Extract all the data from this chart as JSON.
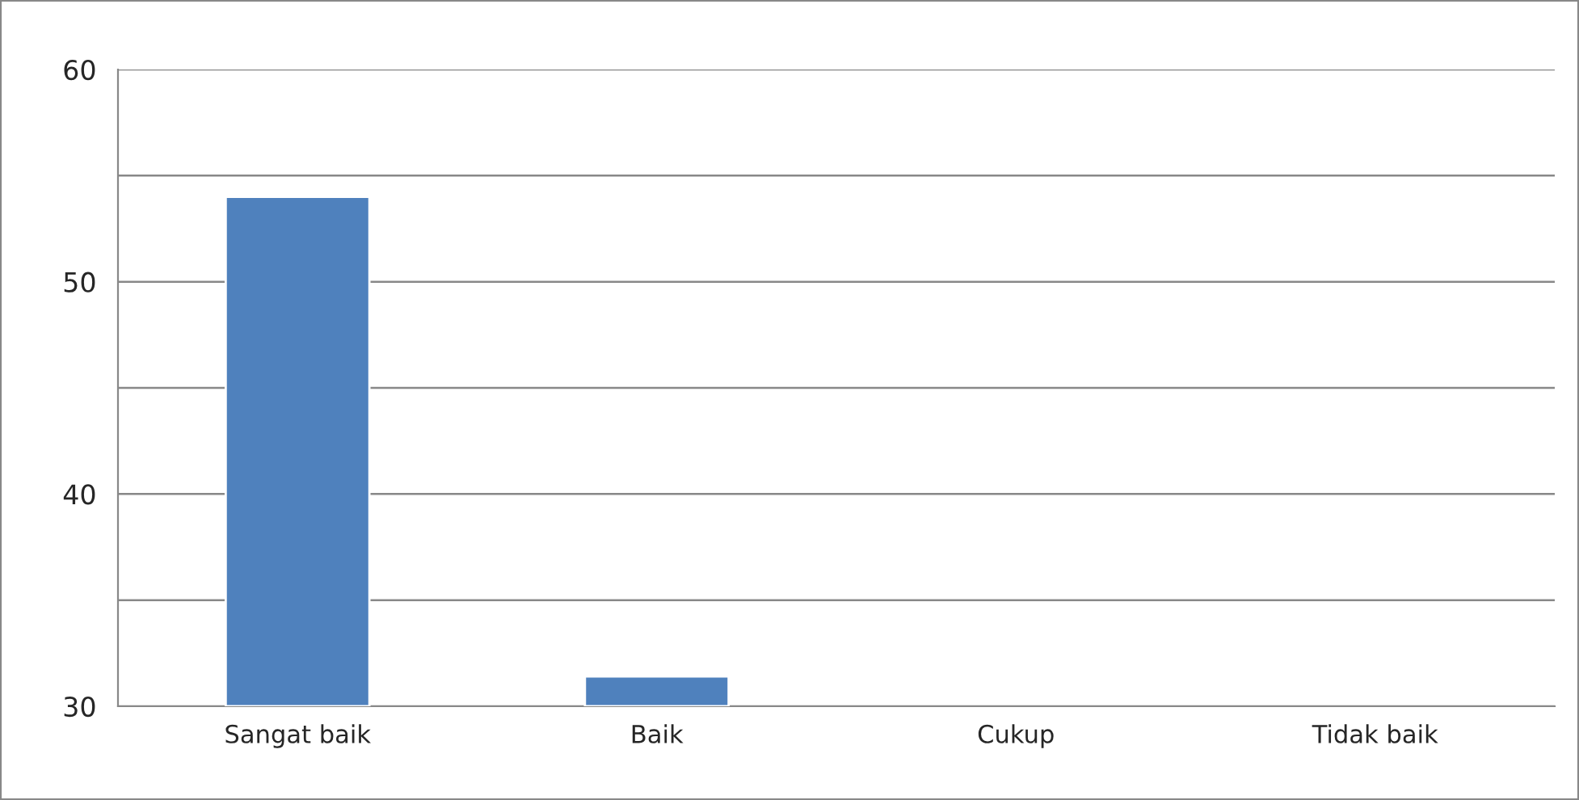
{
  "chart_data": {
    "type": "bar",
    "categories": [
      "Sangat baik",
      "Baik",
      "Cukup",
      "Tidak baik"
    ],
    "values": [
      54,
      31.4,
      null,
      null
    ],
    "color": "#4f81bd",
    "ylim": [
      30,
      60
    ],
    "yticks": [
      30,
      {
        "value": 35,
        "label": null
      },
      40,
      {
        "value": 45,
        "label": null
      },
      50,
      {
        "value": 55,
        "label": null
      },
      60
    ],
    "grid": "y"
  }
}
